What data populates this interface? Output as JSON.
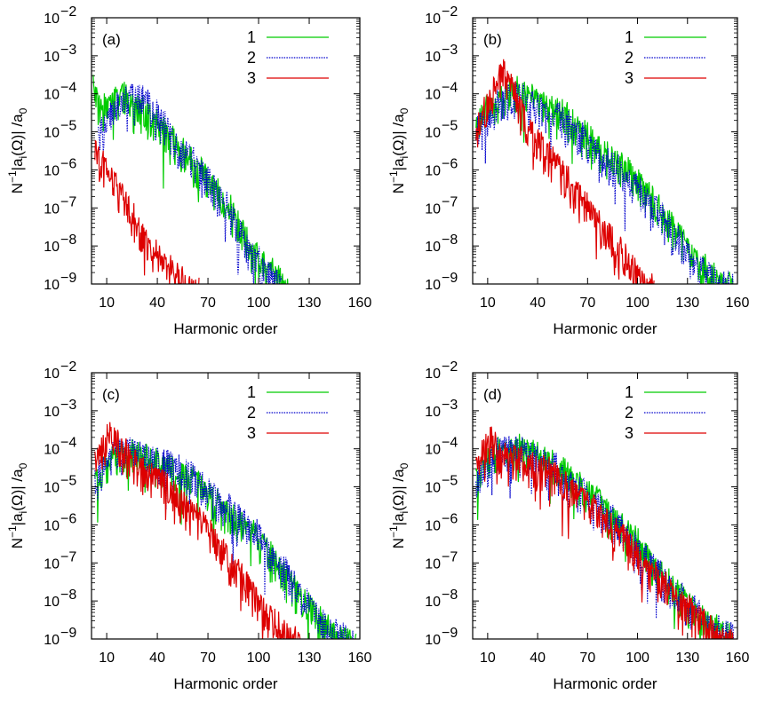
{
  "figure": {
    "xlabel": "Harmonic order",
    "ylabel_prefix": "N",
    "ylabel_exp": "−1",
    "ylabel_a": "|a",
    "ylabel_i": "i",
    "ylabel_omega": "(Ω)| /a",
    "ylabel_zero": "0",
    "y_ticks": [
      "10",
      "10",
      "10",
      "10",
      "10",
      "10",
      "10",
      "10"
    ],
    "y_tick_exps": [
      "−2",
      "−3",
      "−4",
      "−5",
      "−6",
      "−7",
      "−8",
      "−9"
    ],
    "x_ticks": [
      "10",
      "40",
      "70",
      "100",
      "130",
      "160"
    ]
  },
  "chart_data": [
    {
      "type": "line",
      "panel": "(a)",
      "xlabel": "Harmonic order",
      "ylabel": "N^-1 |a_i(Ω)| /a_0",
      "xlim": [
        1,
        160
      ],
      "ylim_log10": [
        -9,
        -2
      ],
      "x_ticks": [
        10,
        40,
        70,
        100,
        130,
        160
      ],
      "series": [
        {
          "name": "1",
          "color": "#00cc00",
          "style": "solid",
          "x": [
            2,
            5,
            10,
            15,
            20,
            25,
            30,
            35,
            40,
            45,
            50,
            55,
            60,
            65,
            70,
            75,
            80,
            85,
            90,
            95,
            100,
            105,
            110,
            115,
            118
          ],
          "log10_y": [
            -3.6,
            -4.2,
            -4.1,
            -4.0,
            -3.9,
            -4.0,
            -4.2,
            -4.4,
            -4.6,
            -4.9,
            -5.1,
            -5.3,
            -5.6,
            -5.8,
            -6.0,
            -6.3,
            -6.6,
            -7.0,
            -7.4,
            -7.8,
            -8.2,
            -8.4,
            -8.6,
            -8.8,
            -9.0
          ]
        },
        {
          "name": "2",
          "color": "#0000cc",
          "style": "dotted",
          "x": [
            5,
            10,
            15,
            20,
            25,
            30,
            35,
            40,
            45,
            50,
            55,
            60,
            65,
            70,
            75,
            80,
            85,
            90,
            95,
            100,
            105,
            110,
            114
          ],
          "log10_y": [
            -4.8,
            -4.5,
            -4.2,
            -4.0,
            -3.8,
            -3.9,
            -4.1,
            -4.4,
            -4.7,
            -5.0,
            -5.3,
            -5.5,
            -5.8,
            -6.1,
            -6.4,
            -6.7,
            -7.1,
            -7.5,
            -7.9,
            -8.2,
            -8.5,
            -8.8,
            -9.0
          ]
        },
        {
          "name": "3",
          "color": "#dd0000",
          "style": "solid",
          "x": [
            3,
            6,
            10,
            15,
            20,
            25,
            30,
            35,
            40,
            45,
            50,
            55,
            60,
            65
          ],
          "log10_y": [
            -5.2,
            -5.5,
            -5.9,
            -6.2,
            -6.5,
            -7.0,
            -7.5,
            -7.8,
            -8.1,
            -8.3,
            -8.5,
            -8.7,
            -8.9,
            -9.0
          ]
        }
      ]
    },
    {
      "type": "line",
      "panel": "(b)",
      "xlabel": "Harmonic order",
      "ylabel": "N^-1 |a_i(Ω)| /a_0",
      "xlim": [
        1,
        160
      ],
      "ylim_log10": [
        -9,
        -2
      ],
      "x_ticks": [
        10,
        40,
        70,
        100,
        130,
        160
      ],
      "series": [
        {
          "name": "1",
          "color": "#00cc00",
          "style": "solid",
          "x": [
            3,
            10,
            15,
            20,
            25,
            30,
            35,
            40,
            45,
            50,
            55,
            60,
            65,
            70,
            75,
            80,
            85,
            90,
            95,
            100,
            105,
            110,
            115,
            120,
            125,
            130,
            135,
            140,
            145,
            150,
            155,
            158
          ],
          "log10_y": [
            -4.6,
            -4.2,
            -4.0,
            -3.8,
            -3.7,
            -3.8,
            -3.9,
            -4.0,
            -4.1,
            -4.2,
            -4.3,
            -4.5,
            -4.7,
            -4.9,
            -5.1,
            -5.3,
            -5.5,
            -5.7,
            -5.9,
            -6.1,
            -6.4,
            -6.7,
            -7.0,
            -7.3,
            -7.6,
            -7.9,
            -8.2,
            -8.4,
            -8.6,
            -8.8,
            -8.9,
            -9.0
          ]
        },
        {
          "name": "2",
          "color": "#0000cc",
          "style": "dotted",
          "x": [
            3,
            10,
            15,
            20,
            25,
            30,
            35,
            40,
            45,
            50,
            55,
            60,
            65,
            70,
            75,
            80,
            85,
            90,
            95,
            100,
            105,
            110,
            115,
            120,
            125,
            130,
            135,
            140,
            145,
            150,
            155,
            158
          ],
          "log10_y": [
            -4.7,
            -4.4,
            -4.1,
            -3.9,
            -3.8,
            -3.9,
            -4.0,
            -4.2,
            -4.3,
            -4.4,
            -4.5,
            -4.7,
            -4.9,
            -5.1,
            -5.3,
            -5.5,
            -5.7,
            -5.9,
            -6.1,
            -6.3,
            -6.5,
            -6.8,
            -7.1,
            -7.4,
            -7.7,
            -8.0,
            -8.3,
            -8.5,
            -8.7,
            -8.8,
            -8.9,
            -9.0
          ]
        },
        {
          "name": "3",
          "color": "#dd0000",
          "style": "solid",
          "x": [
            3,
            8,
            12,
            16,
            20,
            25,
            30,
            35,
            40,
            45,
            50,
            55,
            60,
            65,
            70,
            75,
            80,
            85,
            90,
            95,
            100,
            105,
            110
          ],
          "log10_y": [
            -4.8,
            -4.3,
            -3.9,
            -3.4,
            -3.1,
            -3.7,
            -4.3,
            -4.7,
            -5.0,
            -5.3,
            -5.6,
            -5.9,
            -6.2,
            -6.5,
            -6.8,
            -7.1,
            -7.4,
            -7.7,
            -8.0,
            -8.3,
            -8.5,
            -8.8,
            -9.0
          ]
        }
      ]
    },
    {
      "type": "line",
      "panel": "(c)",
      "xlabel": "Harmonic order",
      "ylabel": "N^-1 |a_i(Ω)| /a_0",
      "xlim": [
        1,
        160
      ],
      "ylim_log10": [
        -9,
        -2
      ],
      "x_ticks": [
        10,
        40,
        70,
        100,
        130,
        160
      ],
      "series": [
        {
          "name": "1",
          "color": "#00cc00",
          "style": "solid",
          "x": [
            3,
            10,
            15,
            20,
            25,
            30,
            35,
            40,
            45,
            50,
            55,
            60,
            65,
            70,
            75,
            80,
            85,
            90,
            95,
            100,
            105,
            110,
            115,
            120,
            125,
            130,
            135,
            140,
            145,
            150,
            155,
            158
          ],
          "log10_y": [
            -4.8,
            -4.2,
            -4.0,
            -3.9,
            -3.9,
            -4.0,
            -4.1,
            -4.2,
            -4.3,
            -4.4,
            -4.5,
            -4.6,
            -4.8,
            -5.0,
            -5.2,
            -5.4,
            -5.6,
            -5.8,
            -6.0,
            -6.2,
            -6.5,
            -6.8,
            -7.1,
            -7.4,
            -7.7,
            -8.0,
            -8.3,
            -8.5,
            -8.7,
            -8.8,
            -8.9,
            -9.0
          ]
        },
        {
          "name": "2",
          "color": "#0000cc",
          "style": "dotted",
          "x": [
            3,
            10,
            15,
            20,
            25,
            30,
            35,
            40,
            45,
            50,
            55,
            60,
            65,
            70,
            75,
            80,
            85,
            90,
            95,
            100,
            105,
            110,
            115,
            120,
            125,
            130,
            135,
            140,
            145,
            150,
            155,
            158
          ],
          "log10_y": [
            -4.7,
            -4.2,
            -3.9,
            -3.8,
            -3.8,
            -3.9,
            -4.0,
            -4.1,
            -4.2,
            -4.3,
            -4.4,
            -4.5,
            -4.7,
            -4.9,
            -5.1,
            -5.3,
            -5.5,
            -5.7,
            -5.9,
            -6.1,
            -6.4,
            -6.7,
            -7.0,
            -7.3,
            -7.6,
            -7.9,
            -8.2,
            -8.4,
            -8.6,
            -8.8,
            -8.9,
            -9.0
          ]
        },
        {
          "name": "3",
          "color": "#dd0000",
          "style": "solid",
          "x": [
            3,
            8,
            12,
            16,
            20,
            25,
            30,
            35,
            40,
            45,
            50,
            55,
            60,
            65,
            70,
            75,
            80,
            85,
            90,
            95,
            100,
            105,
            110,
            115,
            120,
            125
          ],
          "log10_y": [
            -4.3,
            -3.8,
            -3.2,
            -3.6,
            -3.9,
            -4.1,
            -4.3,
            -4.5,
            -4.6,
            -4.8,
            -5.0,
            -5.2,
            -5.4,
            -5.7,
            -6.0,
            -6.3,
            -6.6,
            -6.9,
            -7.2,
            -7.5,
            -7.8,
            -8.1,
            -8.4,
            -8.6,
            -8.8,
            -9.0
          ]
        }
      ]
    },
    {
      "type": "line",
      "panel": "(d)",
      "xlabel": "Harmonic order",
      "ylabel": "N^-1 |a_i(Ω)| /a_0",
      "xlim": [
        1,
        160
      ],
      "ylim_log10": [
        -9,
        -2
      ],
      "x_ticks": [
        10,
        40,
        70,
        100,
        130,
        160
      ],
      "series": [
        {
          "name": "1",
          "color": "#00cc00",
          "style": "solid",
          "x": [
            3,
            10,
            15,
            20,
            25,
            30,
            35,
            40,
            45,
            50,
            55,
            60,
            65,
            70,
            75,
            80,
            85,
            90,
            95,
            100,
            105,
            110,
            115,
            120,
            125,
            130,
            135,
            140,
            145,
            150,
            155,
            158
          ],
          "log10_y": [
            -4.6,
            -4.1,
            -3.9,
            -3.8,
            -3.8,
            -3.8,
            -3.9,
            -4.0,
            -4.1,
            -4.3,
            -4.4,
            -4.6,
            -4.8,
            -5.0,
            -5.2,
            -5.4,
            -5.7,
            -5.9,
            -6.1,
            -6.3,
            -6.6,
            -6.9,
            -7.1,
            -7.4,
            -7.6,
            -7.9,
            -8.1,
            -8.3,
            -8.5,
            -8.6,
            -8.7,
            -8.8
          ]
        },
        {
          "name": "2",
          "color": "#0000cc",
          "style": "dotted",
          "x": [
            3,
            10,
            15,
            20,
            25,
            30,
            35,
            40,
            45,
            50,
            55,
            60,
            65,
            70,
            75,
            80,
            85,
            90,
            95,
            100,
            105,
            110,
            115,
            120,
            125,
            130,
            135,
            140,
            145,
            150,
            155,
            158
          ],
          "log10_y": [
            -4.7,
            -4.2,
            -3.9,
            -3.8,
            -3.8,
            -3.9,
            -4.0,
            -4.1,
            -4.2,
            -4.3,
            -4.5,
            -4.7,
            -4.9,
            -5.1,
            -5.3,
            -5.5,
            -5.7,
            -5.9,
            -6.1,
            -6.4,
            -6.7,
            -6.9,
            -7.2,
            -7.4,
            -7.7,
            -7.9,
            -8.1,
            -8.3,
            -8.5,
            -8.6,
            -8.7,
            -8.8
          ]
        },
        {
          "name": "3",
          "color": "#dd0000",
          "style": "solid",
          "x": [
            3,
            8,
            12,
            16,
            20,
            25,
            30,
            35,
            40,
            45,
            50,
            55,
            60,
            65,
            70,
            75,
            80,
            85,
            90,
            95,
            100,
            105,
            110,
            115,
            120,
            125,
            130,
            135,
            140,
            145,
            150,
            155,
            158
          ],
          "log10_y": [
            -4.2,
            -3.9,
            -3.5,
            -3.8,
            -4.0,
            -4.0,
            -4.1,
            -4.2,
            -4.3,
            -4.4,
            -4.5,
            -4.7,
            -4.9,
            -5.1,
            -5.3,
            -5.5,
            -5.7,
            -5.9,
            -6.1,
            -6.4,
            -6.6,
            -6.9,
            -7.1,
            -7.3,
            -7.6,
            -7.8,
            -8.0,
            -8.2,
            -8.4,
            -8.6,
            -8.7,
            -8.8,
            -8.9
          ]
        }
      ]
    }
  ]
}
